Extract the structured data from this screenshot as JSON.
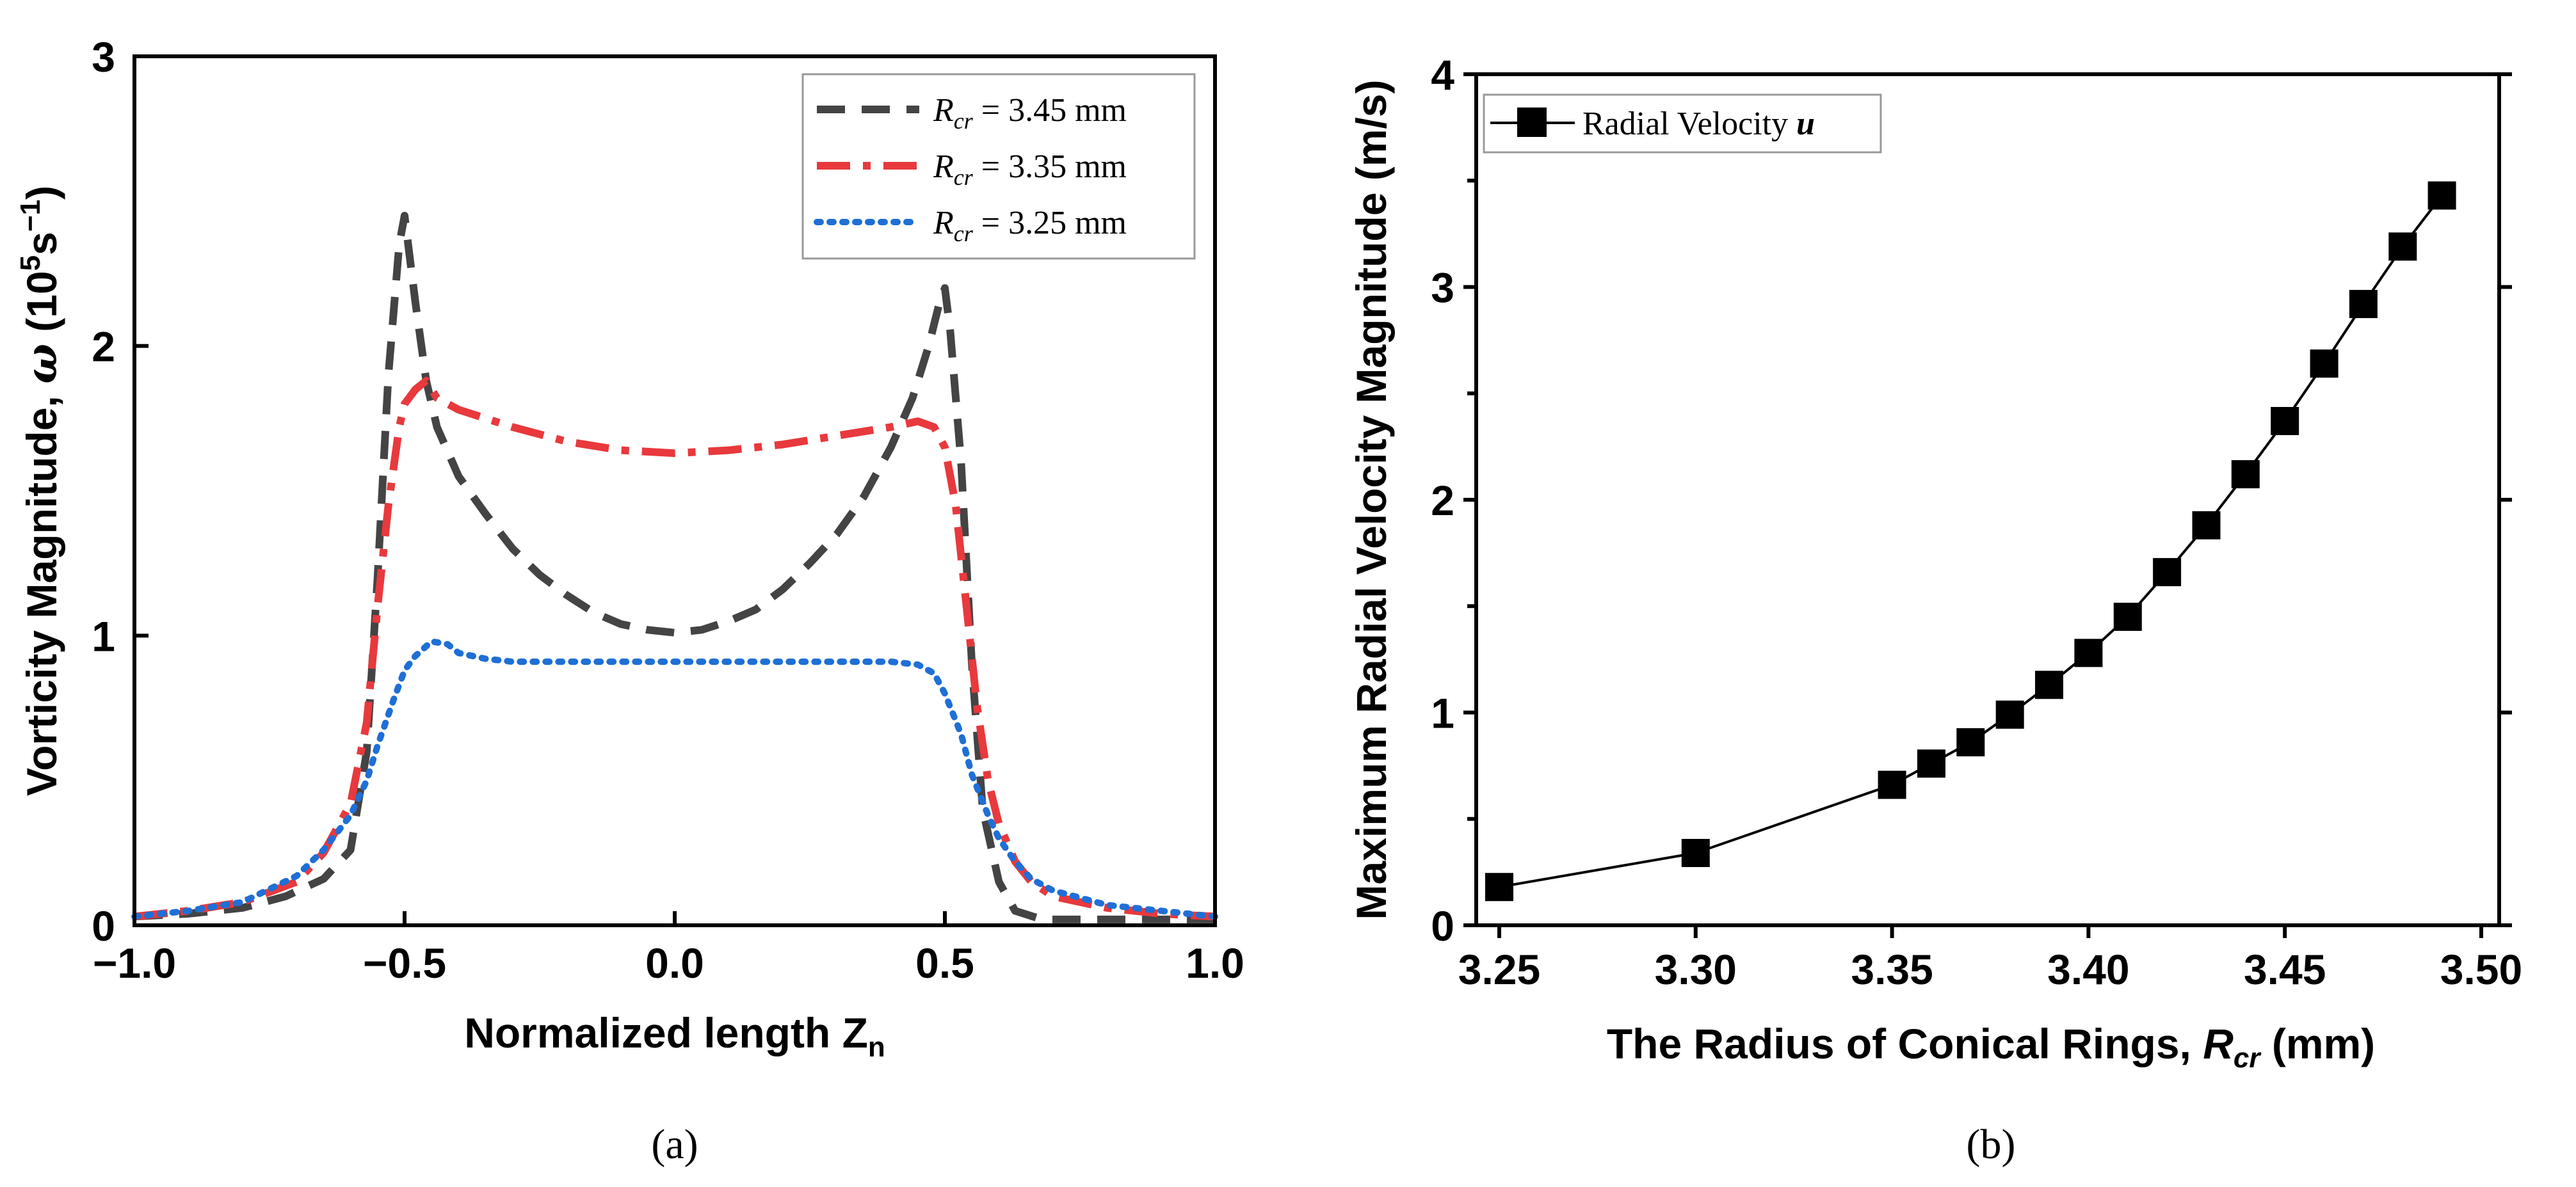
{
  "chart_data": [
    {
      "panel": "a",
      "type": "line",
      "title": "",
      "xlabel": "Normalized length Z",
      "xlabel_sub": "n",
      "ylabel_prefix": "Vorticity Magnitude, ",
      "ylabel_symbol": "ω",
      "ylabel_units_open": " (10",
      "ylabel_units_sup1": "5",
      "ylabel_units_mid": "s",
      "ylabel_units_sup2": "−1",
      "ylabel_units_close": ")",
      "xlim": [
        -1.0,
        1.0
      ],
      "ylim": [
        0,
        3
      ],
      "xticks": [
        -1.0,
        -0.5,
        0.0,
        0.5,
        1.0
      ],
      "xtick_labels": [
        "−1.0",
        "−0.5",
        "0.0",
        "0.5",
        "1.0"
      ],
      "yticks": [
        0,
        1,
        2,
        3
      ],
      "ytick_labels": [
        "0",
        "1",
        "2",
        "3"
      ],
      "legend_position": "top-right",
      "series": [
        {
          "name": "R_cr = 3.45 mm",
          "legend_symbol": "R",
          "legend_sub": "cr",
          "legend_value": " = 3.45 mm",
          "color": "#444444",
          "style": "dashed",
          "x": [
            -1.0,
            -0.9,
            -0.8,
            -0.72,
            -0.65,
            -0.6,
            -0.57,
            -0.55,
            -0.53,
            -0.51,
            -0.5,
            -0.48,
            -0.46,
            -0.44,
            -0.4,
            -0.35,
            -0.3,
            -0.25,
            -0.2,
            -0.15,
            -0.1,
            -0.05,
            0.0,
            0.05,
            0.1,
            0.15,
            0.2,
            0.25,
            0.3,
            0.35,
            0.4,
            0.44,
            0.47,
            0.49,
            0.5,
            0.51,
            0.53,
            0.55,
            0.57,
            0.6,
            0.63,
            0.68,
            0.75,
            0.85,
            1.0
          ],
          "y": [
            0.03,
            0.04,
            0.06,
            0.1,
            0.16,
            0.26,
            0.6,
            1.2,
            1.9,
            2.35,
            2.45,
            2.15,
            1.88,
            1.72,
            1.55,
            1.42,
            1.3,
            1.21,
            1.14,
            1.08,
            1.04,
            1.02,
            1.01,
            1.02,
            1.05,
            1.09,
            1.16,
            1.25,
            1.35,
            1.48,
            1.65,
            1.82,
            2.0,
            2.15,
            2.2,
            2.05,
            1.6,
            0.9,
            0.4,
            0.15,
            0.05,
            0.02,
            0.02,
            0.02,
            0.02
          ]
        },
        {
          "name": "R_cr = 3.35 mm",
          "legend_symbol": "R",
          "legend_sub": "cr",
          "legend_value": " = 3.35 mm",
          "color": "#e8393d",
          "style": "dash-dot",
          "x": [
            -1.0,
            -0.9,
            -0.8,
            -0.7,
            -0.65,
            -0.6,
            -0.57,
            -0.55,
            -0.53,
            -0.51,
            -0.5,
            -0.48,
            -0.46,
            -0.44,
            -0.4,
            -0.3,
            -0.2,
            -0.1,
            0.0,
            0.1,
            0.2,
            0.3,
            0.4,
            0.45,
            0.48,
            0.5,
            0.52,
            0.54,
            0.56,
            0.58,
            0.6,
            0.63,
            0.66,
            0.7,
            0.8,
            0.9,
            1.0
          ],
          "y": [
            0.03,
            0.05,
            0.08,
            0.15,
            0.25,
            0.42,
            0.7,
            1.1,
            1.45,
            1.72,
            1.8,
            1.85,
            1.88,
            1.82,
            1.78,
            1.72,
            1.67,
            1.64,
            1.63,
            1.64,
            1.66,
            1.69,
            1.72,
            1.74,
            1.72,
            1.65,
            1.45,
            1.1,
            0.75,
            0.5,
            0.35,
            0.22,
            0.15,
            0.1,
            0.06,
            0.04,
            0.03
          ]
        },
        {
          "name": "R_cr = 3.25 mm",
          "legend_symbol": "R",
          "legend_sub": "cr",
          "legend_value": " = 3.25 mm",
          "color": "#1f6fd6",
          "style": "dotted",
          "x": [
            -1.0,
            -0.9,
            -0.8,
            -0.7,
            -0.65,
            -0.6,
            -0.57,
            -0.55,
            -0.52,
            -0.5,
            -0.48,
            -0.45,
            -0.42,
            -0.4,
            -0.35,
            -0.3,
            -0.2,
            -0.1,
            0.0,
            0.1,
            0.2,
            0.3,
            0.4,
            0.45,
            0.48,
            0.5,
            0.53,
            0.55,
            0.58,
            0.6,
            0.63,
            0.66,
            0.7,
            0.8,
            0.9,
            1.0
          ],
          "y": [
            0.03,
            0.05,
            0.08,
            0.17,
            0.26,
            0.38,
            0.5,
            0.62,
            0.78,
            0.88,
            0.93,
            0.98,
            0.97,
            0.94,
            0.92,
            0.91,
            0.91,
            0.91,
            0.91,
            0.91,
            0.91,
            0.91,
            0.91,
            0.9,
            0.87,
            0.8,
            0.66,
            0.52,
            0.38,
            0.3,
            0.22,
            0.16,
            0.12,
            0.07,
            0.05,
            0.03
          ]
        }
      ]
    },
    {
      "panel": "b",
      "type": "line",
      "markers": "square",
      "title": "",
      "xlabel_prefix": "The Radius of Conical Rings, ",
      "xlabel_symbol": "R",
      "xlabel_sub": "cr",
      "xlabel_units": " (mm)",
      "ylabel": "Maximum Radial Velocity Magnitude (m/s)",
      "xlim": [
        3.25,
        3.5
      ],
      "ylim": [
        0,
        4
      ],
      "xticks": [
        3.25,
        3.3,
        3.35,
        3.4,
        3.45,
        3.5
      ],
      "xtick_labels": [
        "3.25",
        "3.30",
        "3.35",
        "3.40",
        "3.45",
        "3.50"
      ],
      "yticks": [
        0,
        1,
        2,
        3,
        4
      ],
      "ytick_labels": [
        "0",
        "1",
        "2",
        "3",
        "4"
      ],
      "legend_position": "top-left",
      "series": [
        {
          "name": "Radial Velocity u",
          "legend_text": "Radial Velocity ",
          "legend_symbol": "u",
          "color": "#000000",
          "x": [
            3.25,
            3.3,
            3.35,
            3.36,
            3.37,
            3.38,
            3.39,
            3.4,
            3.41,
            3.42,
            3.43,
            3.44,
            3.45,
            3.46,
            3.47,
            3.48,
            3.49
          ],
          "y": [
            0.18,
            0.34,
            0.66,
            0.76,
            0.86,
            0.99,
            1.13,
            1.28,
            1.45,
            1.66,
            1.88,
            2.12,
            2.37,
            2.64,
            2.92,
            3.19,
            3.43
          ]
        }
      ]
    }
  ],
  "panel_labels": {
    "a": "(a)",
    "b": "(b)"
  }
}
